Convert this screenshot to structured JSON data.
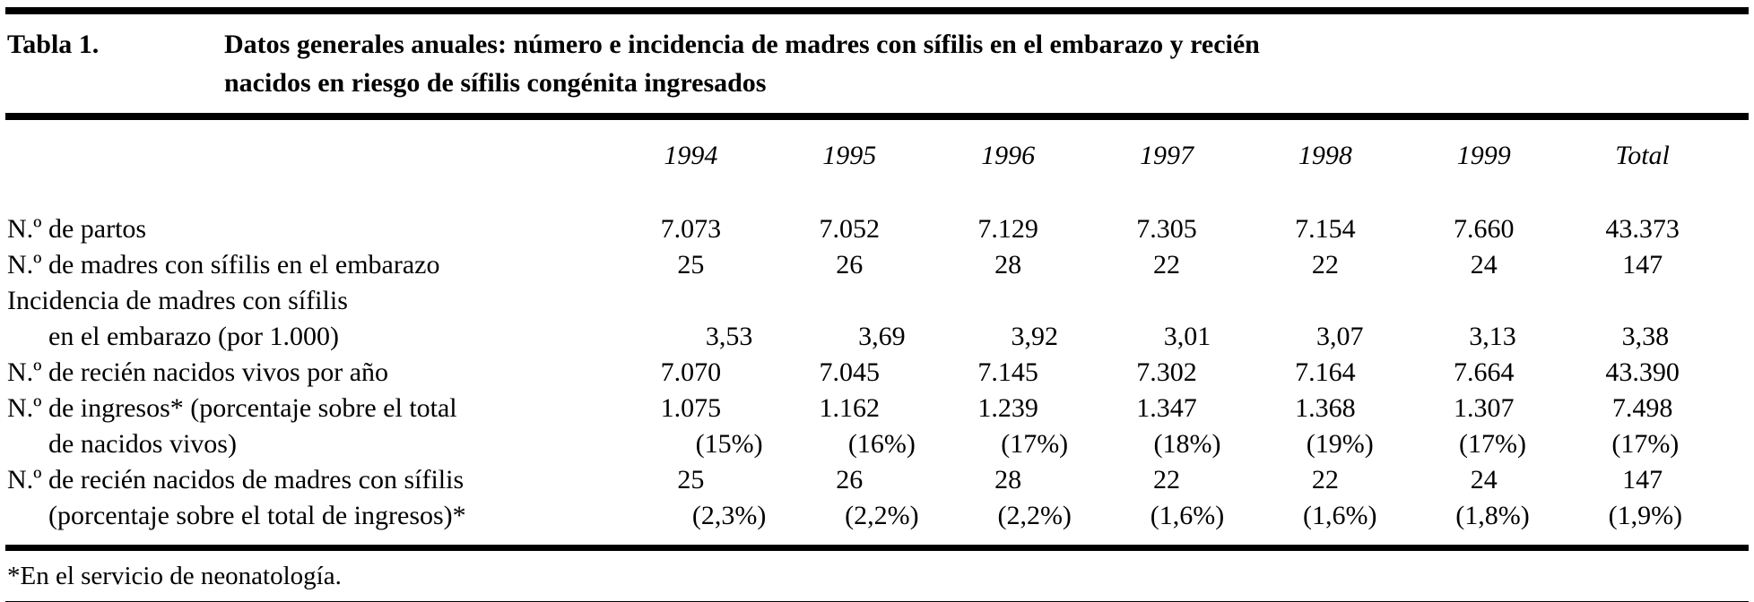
{
  "table": {
    "caption_label": "Tabla 1.",
    "caption_title": "Datos generales anuales: número e incidencia de madres con sífilis en el embarazo y recién nacidos en riesgo de sífilis congénita ingresados",
    "columns": [
      "1994",
      "1995",
      "1996",
      "1997",
      "1998",
      "1999",
      "Total"
    ],
    "rows": [
      {
        "label": "N.º de partos",
        "indent": false,
        "values": [
          "7.073",
          "7.052",
          "7.129",
          "7.305",
          "7.154",
          "7.660",
          "43.373"
        ]
      },
      {
        "label": "N.º de madres con sífilis en el embarazo",
        "indent": false,
        "values": [
          "25",
          "26",
          "28",
          "22",
          "22",
          "24",
          "147"
        ]
      },
      {
        "label": "Incidencia de madres con sífilis",
        "indent": false,
        "values": [
          "",
          "",
          "",
          "",
          "",
          "",
          ""
        ]
      },
      {
        "label": "en el embarazo (por 1.000)",
        "indent": true,
        "values": [
          "3,53",
          "3,69",
          "3,92",
          "3,01",
          "3,07",
          "3,13",
          "3,38"
        ]
      },
      {
        "label": "N.º de recién nacidos vivos por año",
        "indent": false,
        "values": [
          "7.070",
          "7.045",
          "7.145",
          "7.302",
          "7.164",
          "7.664",
          "43.390"
        ]
      },
      {
        "label": "N.º de ingresos* (porcentaje sobre el total",
        "indent": false,
        "values": [
          "1.075",
          "1.162",
          "1.239",
          "1.347",
          "1.368",
          "1.307",
          "7.498"
        ]
      },
      {
        "label": "de nacidos vivos)",
        "indent": true,
        "values": [
          "(15%)",
          "(16%)",
          "(17%)",
          "(18%)",
          "(19%)",
          "(17%)",
          "(17%)"
        ]
      },
      {
        "label": "N.º de recién nacidos de madres con sífilis",
        "indent": false,
        "values": [
          "25",
          "26",
          "28",
          "22",
          "22",
          "24",
          "147"
        ]
      },
      {
        "label": "(porcentaje sobre el total de ingresos)*",
        "indent": true,
        "values": [
          "(2,3%)",
          "(2,2%)",
          "(2,2%)",
          "(1,6%)",
          "(1,6%)",
          "(1,8%)",
          "(1,9%)"
        ]
      }
    ],
    "footnote": "*En el servicio de neonatología."
  },
  "colors": {
    "text": "#000000",
    "background": "#ffffff",
    "rule": "#000000"
  }
}
